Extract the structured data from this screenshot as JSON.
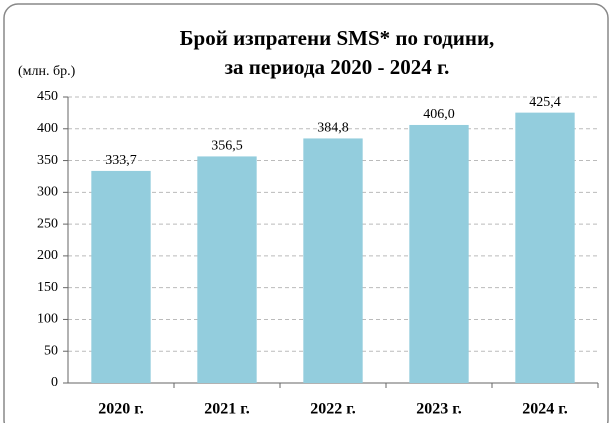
{
  "chart_data": {
    "type": "bar",
    "title": [
      "Брой изпратени SMS* по години,",
      "за периода 2020 - 2024 г."
    ],
    "y_label": "(млн. бр.)",
    "categories": [
      "2020 г.",
      "2021 г.",
      "2022 г.",
      "2023 г.",
      "2024 г."
    ],
    "values": [
      333.7,
      356.5,
      384.8,
      406.0,
      425.4
    ],
    "value_labels": [
      "333,7",
      "356,5",
      "384,8",
      "406,0",
      "425,4"
    ],
    "color": "#93cddd",
    "ylim": [
      0,
      450
    ],
    "yticks": [
      0,
      50,
      100,
      150,
      200,
      250,
      300,
      350,
      400,
      450
    ],
    "grid": true
  }
}
